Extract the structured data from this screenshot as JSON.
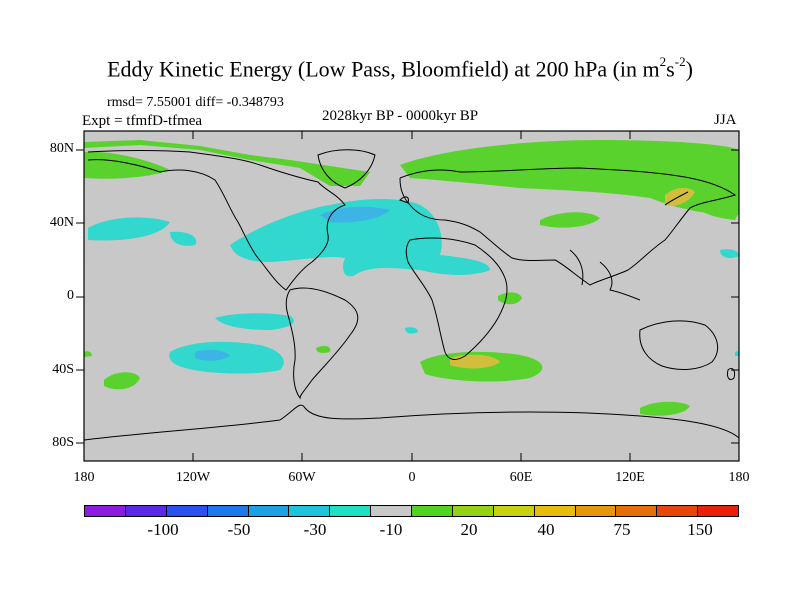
{
  "title": {
    "main": "Eddy Kinetic Energy (Low Pass, Bloomfield) at 200 hPa (in m",
    "sup1": "2",
    "mid": "s",
    "sup2": "-2",
    "end": ")"
  },
  "stats": "rmsd= 7.55001 diff= -0.348793",
  "experiment": "Expt = tfmfD-tfmea",
  "period": "2028kyr BP - 0000kyr BP",
  "season": "JJA",
  "axes": {
    "y_labels": [
      "80N",
      "40N",
      "0",
      "40S",
      "80S"
    ],
    "x_labels": [
      "180",
      "120W",
      "60W",
      "0",
      "60E",
      "120E",
      "180"
    ]
  },
  "colorbar": {
    "colors": [
      "#8c1ce0",
      "#5a28e6",
      "#2a50f0",
      "#1f78eb",
      "#1ea0e6",
      "#1ec3dc",
      "#1ee1c3",
      "#c8c8c8",
      "#50d21e",
      "#96d214",
      "#c8d20a",
      "#e6be0a",
      "#e6960a",
      "#e66e0a",
      "#e6460a",
      "#e6230a"
    ],
    "labels": [
      "-100",
      "-50",
      "-30",
      "-10",
      "20",
      "40",
      "75",
      "150"
    ]
  },
  "colors": {
    "land_bg": "#c8c8c8",
    "green": "#5ad22d",
    "cyan": "#32d7cd",
    "blue": "#3cb4e6",
    "yellow": "#b4d21e",
    "gold": "#d2be3c"
  }
}
